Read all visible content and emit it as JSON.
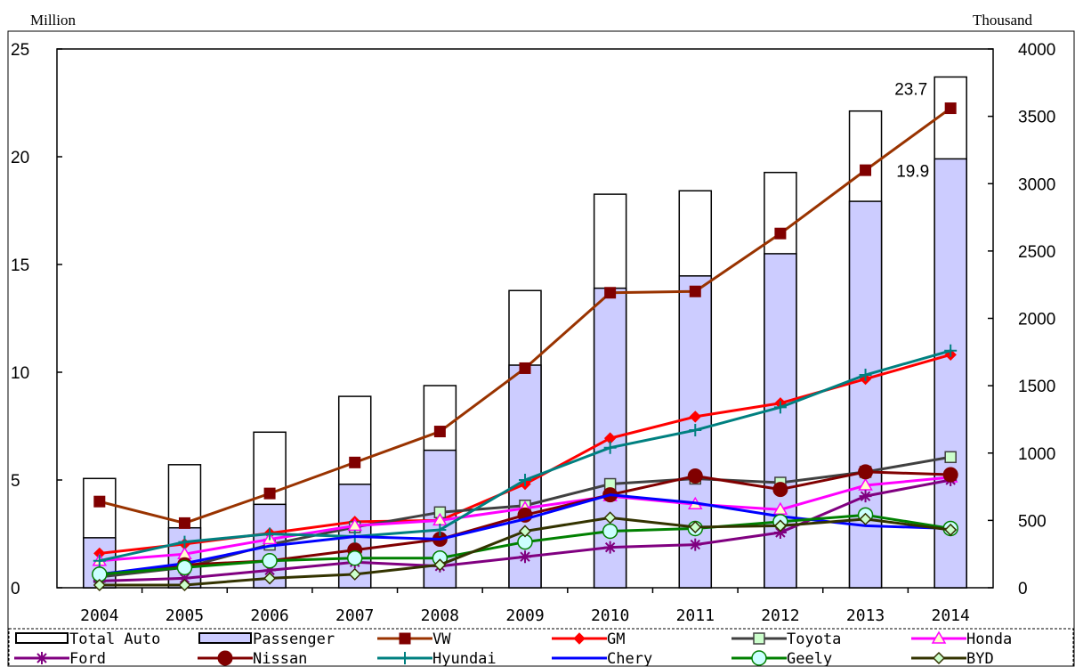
{
  "chart_data": {
    "type": "bar+line",
    "title": "",
    "left_axis_unit": "Million",
    "right_axis_unit": "Thousand",
    "ylim_left": [
      0,
      25
    ],
    "yticks_left": [
      "0",
      "5",
      "10",
      "15",
      "20",
      "25"
    ],
    "ylim_right": [
      0,
      4000
    ],
    "yticks_right": [
      "0",
      "500",
      "1000",
      "1500",
      "2000",
      "2500",
      "3000",
      "3500",
      "4000"
    ],
    "categories": [
      "2004",
      "2005",
      "2006",
      "2007",
      "2008",
      "2009",
      "2010",
      "2011",
      "2012",
      "2013",
      "2014"
    ],
    "bars": [
      {
        "name": "Total Auto",
        "axis": "left",
        "fill": "#ffffff",
        "values": [
          5.07,
          5.71,
          7.22,
          8.88,
          9.38,
          13.79,
          18.26,
          18.42,
          19.27,
          22.12,
          23.7
        ]
      },
      {
        "name": "Passenger",
        "axis": "left",
        "fill": "#ccccff",
        "values": [
          2.32,
          2.78,
          3.87,
          4.8,
          6.38,
          10.33,
          13.9,
          14.47,
          15.5,
          17.93,
          19.9
        ]
      }
    ],
    "data_labels": [
      {
        "text": "23.7"
      },
      {
        "text": "19.9"
      }
    ],
    "series": [
      {
        "name": "VW",
        "axis": "right",
        "color": "#993300",
        "marker": "square",
        "marker_fill": "#800000",
        "values": [
          640,
          480,
          700,
          930,
          1160,
          1630,
          2190,
          2200,
          2630,
          3100,
          3560
        ]
      },
      {
        "name": "GM",
        "axis": "right",
        "color": "#ff0000",
        "marker": "diamond",
        "marker_fill": "#ff0000",
        "values": [
          255,
          325,
          405,
          490,
          500,
          770,
          1110,
          1270,
          1370,
          1550,
          1730
        ]
      },
      {
        "name": "Toyota",
        "axis": "right",
        "color": "#404040",
        "marker": "square-open",
        "marker_fill": "#ccffcc",
        "values": [
          80,
          150,
          320,
          450,
          560,
          610,
          770,
          810,
          780,
          860,
          970
        ]
      },
      {
        "name": "Honda",
        "axis": "right",
        "color": "#ff00ff",
        "marker": "triangle-open",
        "marker_fill": "#ffffcc",
        "values": [
          200,
          250,
          360,
          460,
          500,
          590,
          680,
          620,
          580,
          760,
          820
        ]
      },
      {
        "name": "Ford",
        "axis": "right",
        "color": "#800080",
        "marker": "asterisk",
        "marker_fill": "#800080",
        "values": [
          50,
          70,
          130,
          190,
          160,
          230,
          300,
          320,
          410,
          680,
          800
        ]
      },
      {
        "name": "Nissan",
        "axis": "right",
        "color": "#800000",
        "marker": "circle",
        "marker_fill": "#800000",
        "values": [
          100,
          170,
          200,
          280,
          360,
          540,
          690,
          830,
          730,
          860,
          840
        ]
      },
      {
        "name": "Hyundai",
        "axis": "right",
        "color": "#008080",
        "marker": "plus",
        "marker_fill": "#008080",
        "values": [
          200,
          340,
          400,
          380,
          430,
          800,
          1040,
          1170,
          1340,
          1580,
          1760
        ]
      },
      {
        "name": "Chery",
        "axis": "right",
        "color": "#0000ff",
        "marker": "none",
        "marker_fill": "#0000ff",
        "values": [
          100,
          180,
          310,
          380,
          360,
          510,
          690,
          630,
          530,
          460,
          440
        ]
      },
      {
        "name": "Geely",
        "axis": "right",
        "color": "#008000",
        "marker": "circle-open",
        "marker_fill": "#ccffff",
        "values": [
          100,
          150,
          200,
          220,
          220,
          340,
          420,
          440,
          490,
          540,
          440
        ]
      },
      {
        "name": "BYD",
        "axis": "right",
        "color": "#333300",
        "marker": "diamond-open",
        "marker_fill": "#ccffcc",
        "values": [
          20,
          20,
          70,
          100,
          170,
          420,
          520,
          450,
          460,
          510,
          430
        ]
      }
    ],
    "grid": false,
    "legend_position": "bottom"
  }
}
